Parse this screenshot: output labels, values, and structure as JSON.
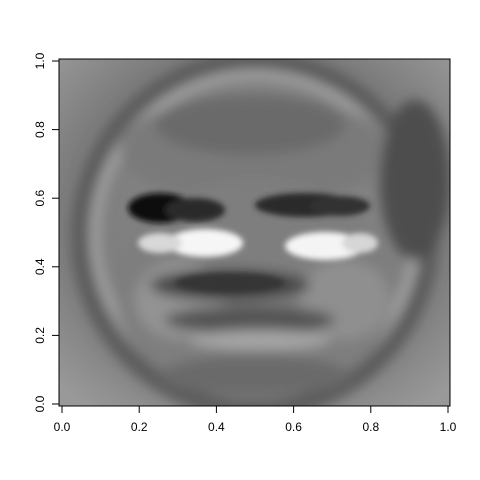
{
  "chart_data": {
    "type": "heatmap",
    "title": "",
    "xlabel": "",
    "ylabel": "",
    "xlim": [
      0,
      1
    ],
    "ylim": [
      0,
      1
    ],
    "x_ticks": [
      "0.0",
      "0.2",
      "0.4",
      "0.6",
      "0.8",
      "1.0"
    ],
    "y_ticks": [
      "0.0",
      "0.2",
      "0.4",
      "0.6",
      "0.8",
      "1.0"
    ],
    "colormap": "grayscale",
    "grid": false,
    "legend": "none",
    "image_description_values": {
      "z_min": 0,
      "z_max": 1
    }
  }
}
